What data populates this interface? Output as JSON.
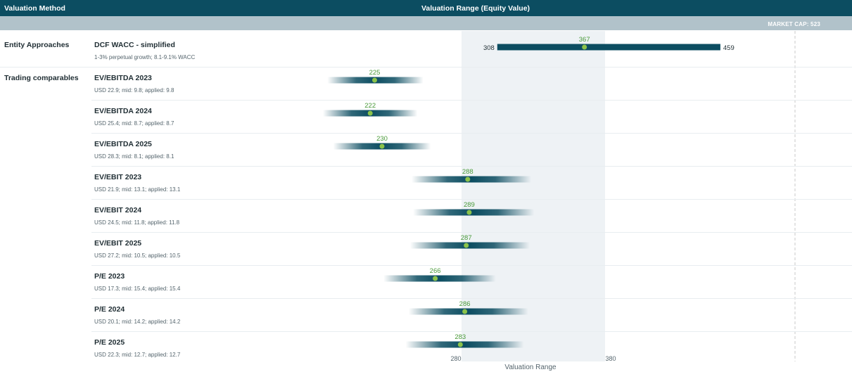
{
  "header": {
    "method_col": "Valuation Method",
    "range_col": "Valuation Range (Equity Value)",
    "market_cap_label": "MARKET CAP: 523"
  },
  "colors": {
    "header_bg": "#0c4d61",
    "subheader_bg": "#b1c2ca",
    "bar": "#0c4d61",
    "midpoint": "#8bc34a",
    "highlight_band": "#eef2f5",
    "market_cap_line": "#c9c9c9"
  },
  "chart_data": {
    "type": "range-bar",
    "xlabel": "Valuation Range",
    "highlight_range": [
      280,
      380
    ],
    "x_ticks": [
      280,
      380
    ],
    "market_cap": 523,
    "groups": [
      {
        "name": "Entity Approaches",
        "rows": [
          {
            "label": "DCF WACC - simplified",
            "sub": "1-3% perpetual growth; 8.1-9.1% WACC",
            "low": 308,
            "high": 459,
            "mid": 367,
            "low_label": "308",
            "high_label": "459",
            "style": "solid"
          }
        ]
      },
      {
        "name": "Trading comparables",
        "rows": [
          {
            "label": "EV/EBITDA 2023",
            "sub": "USD 22.9; mid: 9.8; applied: 9.8",
            "low": 193,
            "high": 258,
            "mid": 225,
            "style": "gradient"
          },
          {
            "label": "EV/EBITDA 2024",
            "sub": "USD 25.4; mid: 8.7; applied: 8.7",
            "low": 190,
            "high": 254,
            "mid": 222,
            "style": "gradient"
          },
          {
            "label": "EV/EBITDA 2025",
            "sub": "USD 28.3; mid: 8.1; applied: 8.1",
            "low": 197,
            "high": 263,
            "mid": 230,
            "style": "gradient"
          },
          {
            "label": "EV/EBIT 2023",
            "sub": "USD 21.9; mid: 13.1; applied: 13.1",
            "low": 250,
            "high": 331,
            "mid": 288,
            "style": "gradient"
          },
          {
            "label": "EV/EBIT 2024",
            "sub": "USD 24.5; mid: 11.8; applied: 11.8",
            "low": 251,
            "high": 333,
            "mid": 289,
            "style": "gradient"
          },
          {
            "label": "EV/EBIT 2025",
            "sub": "USD 27.2; mid: 10.5; applied: 10.5",
            "low": 249,
            "high": 330,
            "mid": 287,
            "style": "gradient"
          },
          {
            "label": "P/E 2023",
            "sub": "USD 17.3; mid: 15.4; applied: 15.4",
            "low": 231,
            "high": 307,
            "mid": 266,
            "style": "gradient"
          },
          {
            "label": "P/E 2024",
            "sub": "USD 20.1; mid: 14.2; applied: 14.2",
            "low": 248,
            "high": 329,
            "mid": 286,
            "style": "gradient"
          },
          {
            "label": "P/E 2025",
            "sub": "USD 22.3; mid: 12.7; applied: 12.7",
            "low": 246,
            "high": 326,
            "mid": 283,
            "style": "gradient"
          }
        ]
      }
    ]
  }
}
